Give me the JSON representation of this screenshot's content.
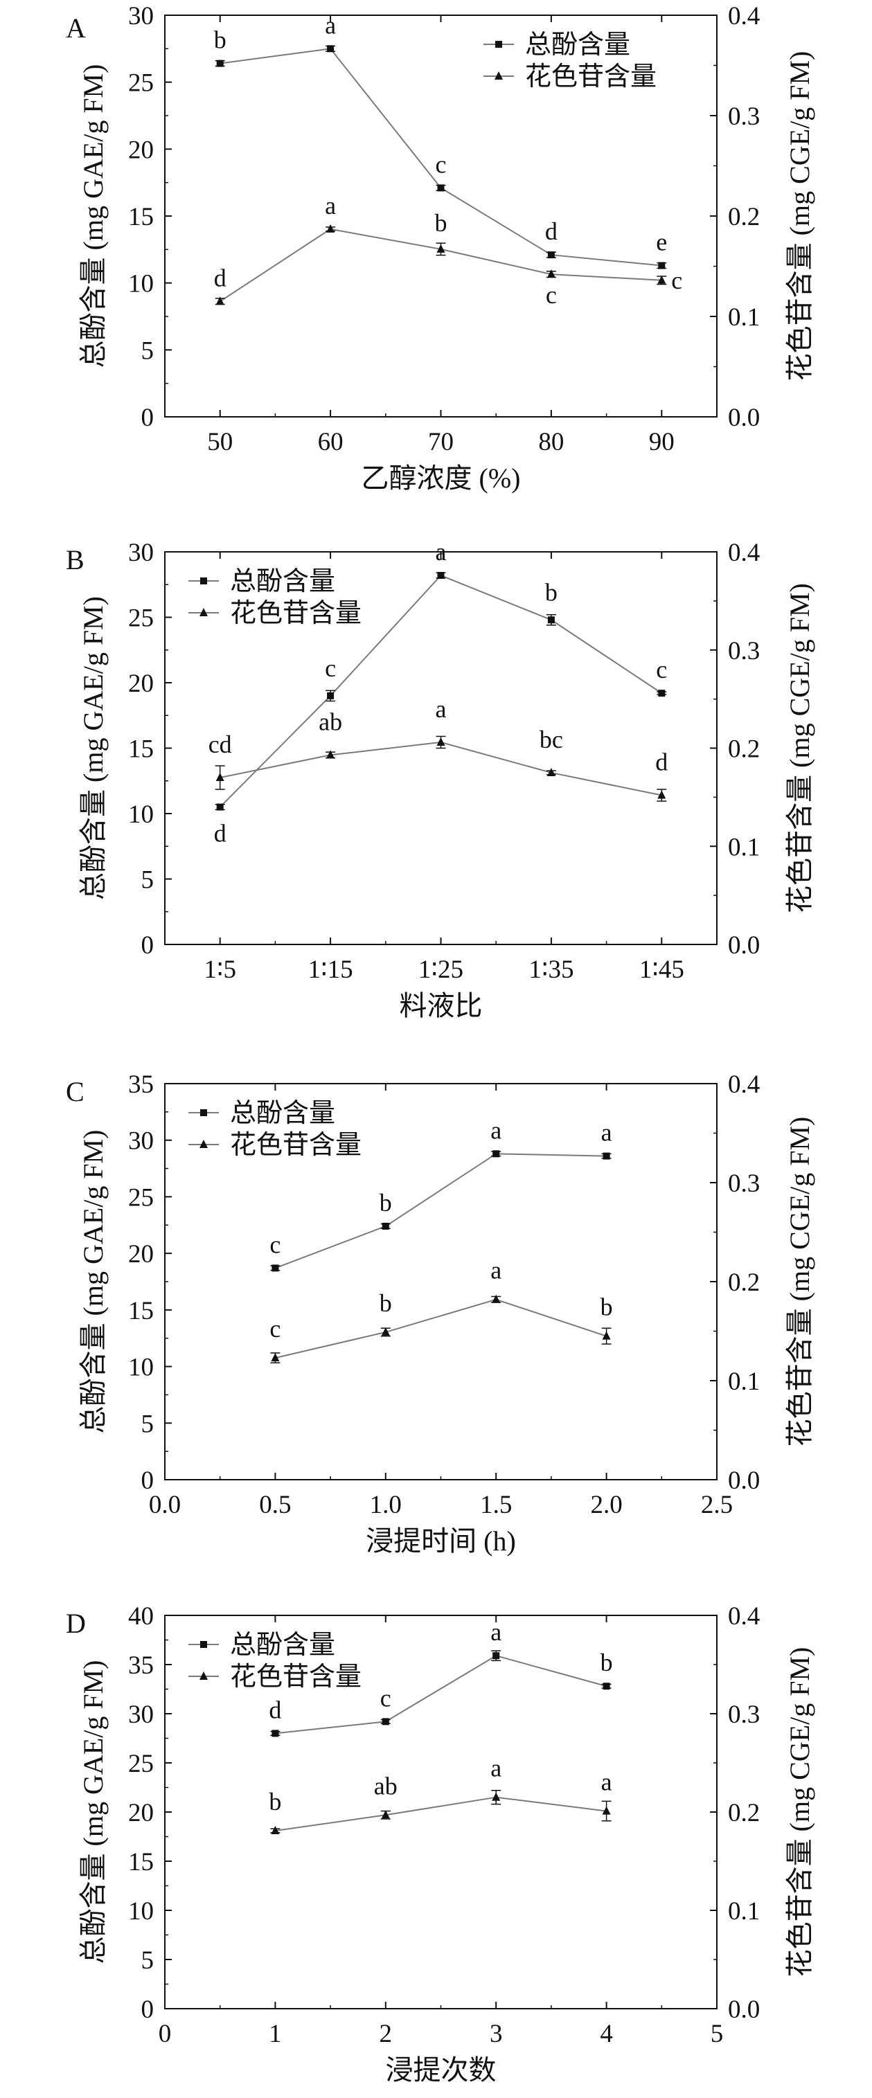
{
  "colors": {
    "line": "#7a7a7a",
    "axis": "#111111",
    "marker": "#111111"
  },
  "legend": {
    "total_phenol": "总酚含量",
    "anthocyanin": "花色苷含量"
  },
  "chart_data": [
    {
      "panel": "A",
      "type": "line",
      "xlabel": "乙醇浓度 (%)",
      "ylabel": "总酚含量 (mg GAE/g FM)",
      "y2label": "花色苷含量 (mg CGE/g FM)",
      "x_ticks": [
        "50",
        "60",
        "70",
        "80",
        "90"
      ],
      "xlim": [
        45,
        95
      ],
      "ylim": [
        0,
        30
      ],
      "y_ticks": [
        "0",
        "5",
        "10",
        "15",
        "20",
        "25",
        "30"
      ],
      "y2lim": [
        0,
        0.4
      ],
      "y2_ticks": [
        "0.0",
        "0.1",
        "0.2",
        "0.3",
        "0.4"
      ],
      "legend_position": "top-right",
      "series": [
        {
          "name": "总酚含量",
          "marker": "square",
          "axis": "left",
          "x": [
            50,
            60,
            70,
            80,
            90
          ],
          "values": [
            26.4,
            27.5,
            17.1,
            12.1,
            11.3
          ],
          "errors": [
            0.2,
            0.2,
            0.2,
            0.2,
            0.2
          ],
          "labels": [
            "b",
            "a",
            "c",
            "d",
            "e"
          ]
        },
        {
          "name": "花色苷含量",
          "marker": "triangle",
          "axis": "right",
          "x": [
            50,
            60,
            70,
            80,
            90
          ],
          "values": [
            0.115,
            0.187,
            0.167,
            0.142,
            0.136
          ],
          "errors": [
            0.003,
            0.002,
            0.006,
            0.003,
            0.004
          ],
          "labels": [
            "d",
            "a",
            "b",
            "c",
            "c"
          ]
        }
      ]
    },
    {
      "panel": "B",
      "type": "line",
      "xlabel": "料液比",
      "ylabel": "总酚含量 (mg GAE/g FM)",
      "y2label": "花色苷含量 (mg CGE/g FM)",
      "x_ticks": [
        "1∶5",
        "1∶15",
        "1∶25",
        "1∶35",
        "1∶45"
      ],
      "xlim": [
        0.5,
        5.5
      ],
      "ylim": [
        0,
        30
      ],
      "y_ticks": [
        "0",
        "5",
        "10",
        "15",
        "20",
        "25",
        "30"
      ],
      "y2lim": [
        0,
        0.4
      ],
      "y2_ticks": [
        "0.0",
        "0.1",
        "0.2",
        "0.3",
        "0.4"
      ],
      "legend_position": "top-left",
      "series": [
        {
          "name": "总酚含量",
          "marker": "square",
          "axis": "left",
          "x": [
            1,
            2,
            3,
            4,
            5
          ],
          "values": [
            10.5,
            19.0,
            28.2,
            24.8,
            19.2
          ],
          "errors": [
            0.2,
            0.4,
            0.2,
            0.4,
            0.1
          ],
          "labels": [
            "d",
            "c",
            "a",
            "b",
            "c"
          ]
        },
        {
          "name": "花色苷含量",
          "marker": "triangle",
          "axis": "right",
          "x": [
            1,
            2,
            3,
            4,
            5
          ],
          "values": [
            0.17,
            0.193,
            0.206,
            0.175,
            0.152
          ],
          "errors": [
            0.012,
            0.003,
            0.006,
            0.002,
            0.006
          ],
          "labels": [
            "cd",
            "ab",
            "a",
            "bc",
            "d"
          ]
        }
      ]
    },
    {
      "panel": "C",
      "type": "line",
      "xlabel": "浸提时间 (h)",
      "ylabel": "总酚含量 (mg GAE/g FM)",
      "y2label": "花色苷含量 (mg CGE/g FM)",
      "x_ticks": [
        "0.0",
        "0.5",
        "1.0",
        "1.5",
        "2.0",
        "2.5"
      ],
      "xlim": [
        0,
        2.5
      ],
      "ylim": [
        0,
        35
      ],
      "y_ticks": [
        "0",
        "5",
        "10",
        "15",
        "20",
        "25",
        "30",
        "35"
      ],
      "y2lim": [
        0,
        0.4
      ],
      "y2_ticks": [
        "0.0",
        "0.1",
        "0.2",
        "0.3",
        "0.4"
      ],
      "legend_position": "top-left",
      "series": [
        {
          "name": "总酚含量",
          "marker": "square",
          "axis": "left",
          "x": [
            0.5,
            1.0,
            1.5,
            2.0
          ],
          "values": [
            18.7,
            22.4,
            28.8,
            28.6
          ],
          "errors": [
            0.2,
            0.2,
            0.2,
            0.2
          ],
          "labels": [
            "c",
            "b",
            "a",
            "a"
          ]
        },
        {
          "name": "花色苷含量",
          "marker": "triangle",
          "axis": "right",
          "x": [
            0.5,
            1.0,
            1.5,
            2.0
          ],
          "values": [
            0.123,
            0.149,
            0.182,
            0.145
          ],
          "errors": [
            0.005,
            0.004,
            0.003,
            0.008
          ],
          "labels": [
            "c",
            "b",
            "a",
            "b"
          ]
        }
      ]
    },
    {
      "panel": "D",
      "type": "line",
      "xlabel": "浸提次数",
      "ylabel": "总酚含量 (mg GAE/g FM)",
      "y2label": "花色苷含量 (mg CGE/g FM)",
      "x_ticks": [
        "0",
        "1",
        "2",
        "3",
        "4",
        "5"
      ],
      "xlim": [
        0,
        5
      ],
      "ylim": [
        0,
        40
      ],
      "y_ticks": [
        "0",
        "5",
        "10",
        "15",
        "20",
        "25",
        "30",
        "35",
        "40"
      ],
      "y2lim": [
        0,
        0.4
      ],
      "y2_ticks": [
        "0.0",
        "0.1",
        "0.2",
        "0.3",
        "0.4"
      ],
      "legend_position": "top-left",
      "series": [
        {
          "name": "总酚含量",
          "marker": "square",
          "axis": "left",
          "x": [
            1,
            2,
            3,
            4
          ],
          "values": [
            28.0,
            29.2,
            35.9,
            32.8
          ],
          "errors": [
            0.2,
            0.2,
            0.5,
            0.2
          ],
          "labels": [
            "d",
            "c",
            "a",
            "b"
          ]
        },
        {
          "name": "花色苷含量",
          "marker": "triangle",
          "axis": "right",
          "x": [
            1,
            2,
            3,
            4
          ],
          "values": [
            0.181,
            0.197,
            0.215,
            0.201
          ],
          "errors": [
            0.002,
            0.004,
            0.007,
            0.01
          ],
          "labels": [
            "b",
            "ab",
            "a",
            "a"
          ]
        }
      ]
    }
  ]
}
